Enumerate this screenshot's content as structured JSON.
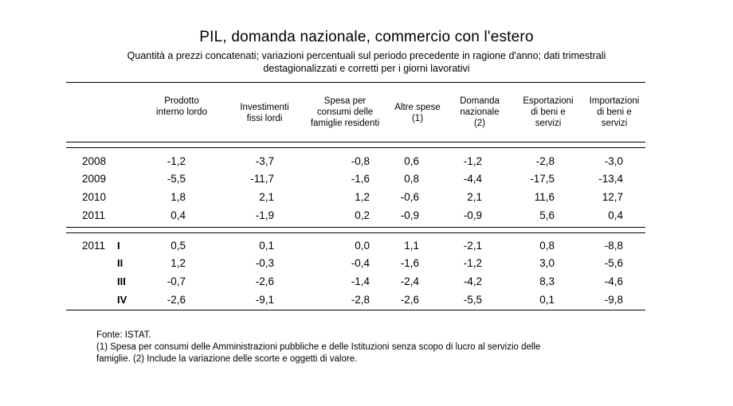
{
  "title": "PIL, domanda nazionale, commercio con l'estero",
  "subtitle_line1": "Quantità a prezzi concatenati; variazioni percentuali sul periodo precedente in ragione d'anno; dati trimestrali",
  "subtitle_line2": "destagionalizzati e corretti per i giorni lavorativi",
  "columns": [
    [
      "Prodotto",
      "interno lordo"
    ],
    [
      "Investimenti",
      "fissi lordi"
    ],
    [
      "Spesa per",
      "consumi delle",
      "famiglie residenti"
    ],
    [
      "Altre spese",
      "(1)"
    ],
    [
      "Domanda",
      "nazionale",
      "(2)"
    ],
    [
      "Esportazioni",
      "di beni e",
      "servizi"
    ],
    [
      "Importazioni",
      "di beni e",
      "servizi"
    ]
  ],
  "annual_rows": [
    {
      "year": "2008",
      "values": [
        "-1,2",
        "-3,7",
        "-0,8",
        "0,6",
        "-1,2",
        "-2,8",
        "-3,0"
      ]
    },
    {
      "year": "2009",
      "values": [
        "-5,5",
        "-11,7",
        "-1,6",
        "0,8",
        "-4,4",
        "-17,5",
        "-13,4"
      ]
    },
    {
      "year": "2010",
      "values": [
        "1,8",
        "2,1",
        "1,2",
        "-0,6",
        "2,1",
        "11,6",
        "12,7"
      ]
    },
    {
      "year": "2011",
      "values": [
        "0,4",
        "-1,9",
        "0,2",
        "-0,9",
        "-0,9",
        "5,6",
        "0,4"
      ]
    }
  ],
  "quarterly_rows": [
    {
      "year": "2011",
      "quarter": "I",
      "values": [
        "0,5",
        "0,1",
        "0,0",
        "1,1",
        "-2,1",
        "0,8",
        "-8,8"
      ]
    },
    {
      "year": "",
      "quarter": "II",
      "values": [
        "1,2",
        "-0,3",
        "-0,4",
        "-1,6",
        "-1,2",
        "3,0",
        "-5,6"
      ]
    },
    {
      "year": "",
      "quarter": "III",
      "values": [
        "-0,7",
        "-2,6",
        "-1,4",
        "-2,4",
        "-4,2",
        "8,3",
        "-4,6"
      ]
    },
    {
      "year": "",
      "quarter": "IV",
      "values": [
        "-2,6",
        "-9,1",
        "-2,8",
        "-2,6",
        "-5,5",
        "0,1",
        "-9,8"
      ]
    }
  ],
  "notes": {
    "source": "Fonte: ISTAT.",
    "note_line1": "(1) Spesa per consumi delle Amministrazioni pubbliche e delle Istituzioni senza scopo di lucro al servizio delle",
    "note_line2": "famiglie. (2) Include la variazione delle scorte e oggetti di valore."
  }
}
